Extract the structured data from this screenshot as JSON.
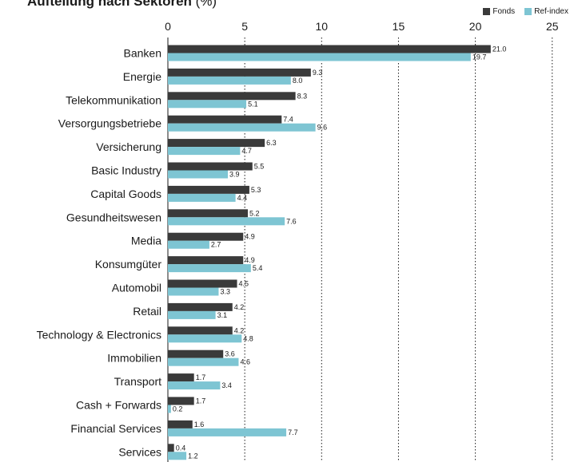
{
  "chart_data": {
    "type": "bar",
    "orientation": "horizontal",
    "title": "Aufteilung nach Sektoren",
    "title_unit": "(%)",
    "categories": [
      "Banken",
      "Energie",
      "Telekommunikation",
      "Versorgungsbetriebe",
      "Versicherung",
      "Basic Industry",
      "Capital Goods",
      "Gesundheitswesen",
      "Media",
      "Konsumgüter",
      "Automobil",
      "Retail",
      "Technology & Electronics",
      "Immobilien",
      "Transport",
      "Cash + Forwards",
      "Financial Services",
      "Services"
    ],
    "series": [
      {
        "name": "Fonds",
        "color": "#3a3a3a",
        "values": [
          21.0,
          9.3,
          8.3,
          7.4,
          6.3,
          5.5,
          5.3,
          5.2,
          4.9,
          4.9,
          4.5,
          4.2,
          4.2,
          3.6,
          1.7,
          1.7,
          1.6,
          0.4
        ]
      },
      {
        "name": "Ref-index",
        "color": "#7ec5d3",
        "values": [
          19.7,
          8.0,
          5.1,
          9.6,
          4.7,
          3.9,
          4.4,
          7.6,
          2.7,
          5.4,
          3.3,
          3.1,
          4.8,
          4.6,
          3.4,
          0.2,
          7.7,
          1.2
        ]
      }
    ],
    "xlim": [
      0,
      25
    ],
    "xticks": [
      "0",
      "5",
      "10",
      "15",
      "20",
      "25"
    ],
    "grid": "vertical dotted",
    "legend_position": "top-right"
  }
}
